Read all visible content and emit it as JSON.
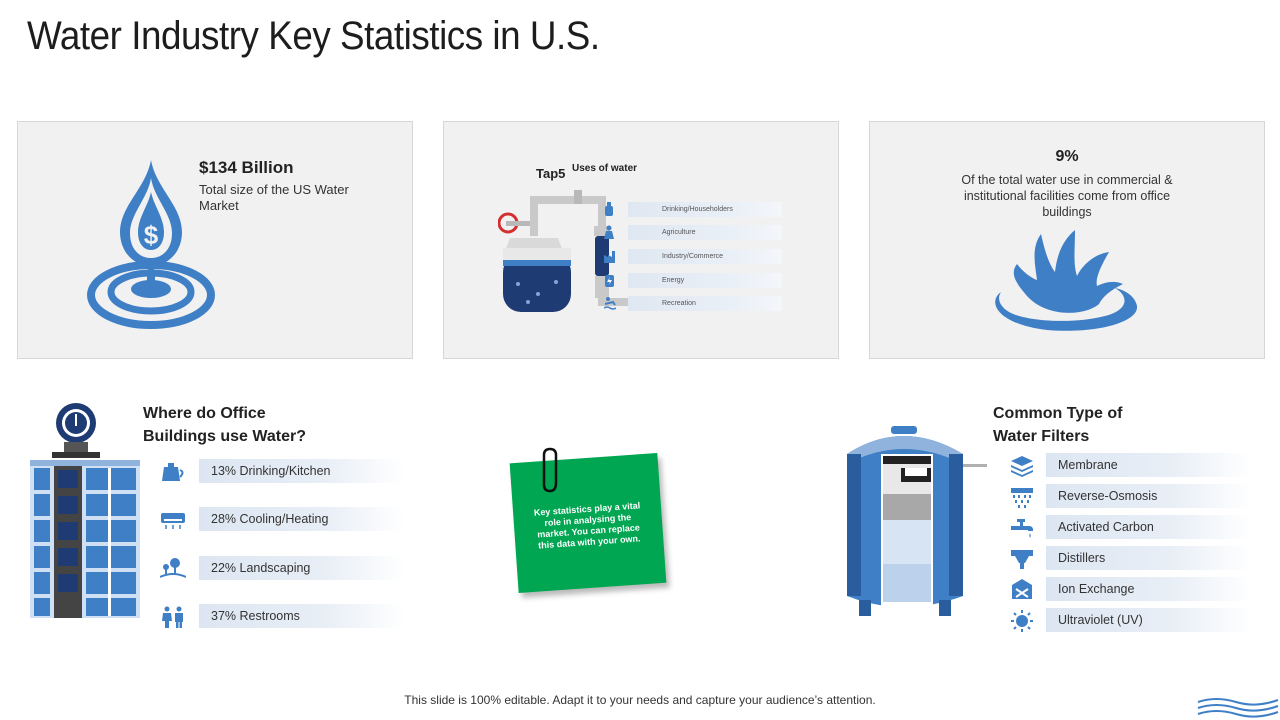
{
  "title": "Water Industry Key Statistics in U.S.",
  "card1": {
    "headline": "$134 Billion",
    "description": "Total size of the US Water Market",
    "icon": "water-drop-dollar-icon"
  },
  "card2": {
    "tap_label": "Tap5",
    "uses_label": "Uses of water",
    "uses": [
      {
        "label": "Drinking/Householders",
        "icon": "bottle-icon"
      },
      {
        "label": "Agriculture",
        "icon": "farmer-icon"
      },
      {
        "label": "Industry/Commerce",
        "icon": "factory-icon"
      },
      {
        "label": "Energy",
        "icon": "energy-icon"
      },
      {
        "label": "Recreation",
        "icon": "swimmer-icon"
      }
    ]
  },
  "card3": {
    "headline": "9%",
    "description": "Of the total water use in commercial & institutional facilities come from office buildings",
    "icon": "water-splash-icon"
  },
  "office": {
    "title_line1": "Where do Office",
    "title_line2": "Buildings use Water?",
    "items": [
      {
        "label": "13% Drinking/Kitchen",
        "icon": "kettle-icon"
      },
      {
        "label": "28% Cooling/Heating",
        "icon": "air-conditioner-icon"
      },
      {
        "label": "22% Landscaping",
        "icon": "landscape-icon"
      },
      {
        "label": "37% Restrooms",
        "icon": "restroom-icon"
      }
    ]
  },
  "note": {
    "text": "Key statistics play a vital role in analysing the market. You can replace this data with your own."
  },
  "filters": {
    "title_line1": "Common Type of",
    "title_line2": "Water Filters",
    "items": [
      {
        "label": "Membrane",
        "icon": "layers-icon"
      },
      {
        "label": "Reverse-Osmosis",
        "icon": "shower-icon"
      },
      {
        "label": "Activated Carbon",
        "icon": "faucet-icon"
      },
      {
        "label": "Distillers",
        "icon": "distiller-icon"
      },
      {
        "label": "Ion Exchange",
        "icon": "ion-exchange-icon"
      },
      {
        "label": "Ultraviolet (UV)",
        "icon": "sun-icon"
      }
    ]
  },
  "footer": "This slide is 100% editable. Adapt it to your needs and capture your audience’s attention.",
  "colors": {
    "accent": "#3f7fc6",
    "dark_blue": "#1f3b73",
    "note_green": "#00a651",
    "card_bg": "#f1f1f1"
  }
}
